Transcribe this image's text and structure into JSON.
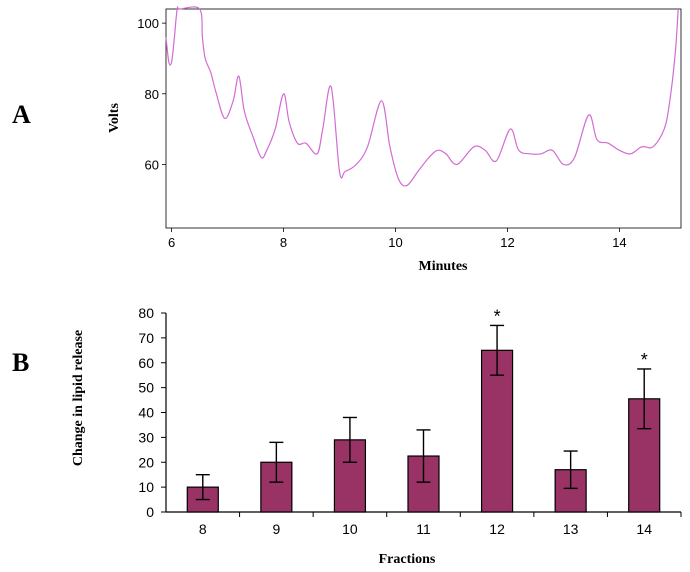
{
  "panels": {
    "a_label": "A",
    "b_label": "B"
  },
  "chart_data": [
    {
      "type": "line",
      "title": "",
      "xlabel": "Minutes",
      "ylabel": "Volts",
      "xlim": [
        5.9,
        15.1
      ],
      "ylim": [
        42,
        104
      ],
      "x_ticks": [
        6,
        8,
        10,
        12,
        14
      ],
      "y_ticks": [
        60,
        80,
        100
      ],
      "series_color": "#d36bd3",
      "grid": false,
      "series": [
        {
          "x": [
            5.9,
            5.95,
            6.0,
            6.05,
            6.1,
            6.15,
            6.5,
            6.55,
            6.6,
            6.7,
            6.8,
            6.95,
            7.1,
            7.2,
            7.3,
            7.45,
            7.6,
            7.7,
            7.85,
            8.0,
            8.1,
            8.25,
            8.4,
            8.6,
            8.7,
            8.85,
            9.0,
            9.1,
            9.3,
            9.5,
            9.75,
            9.9,
            10.05,
            10.2,
            10.4,
            10.6,
            10.75,
            10.9,
            11.1,
            11.4,
            11.6,
            11.8,
            12.05,
            12.2,
            12.4,
            12.6,
            12.8,
            13.0,
            13.2,
            13.45,
            13.6,
            13.8,
            14.0,
            14.2,
            14.4,
            14.6,
            14.8,
            14.9,
            15.0,
            15.05
          ],
          "y": [
            96,
            89,
            89,
            96,
            104,
            104,
            104,
            96,
            90,
            86,
            80,
            73,
            78,
            85,
            75,
            68,
            62,
            64,
            70,
            80,
            72,
            66,
            66,
            63,
            70,
            82,
            58,
            58,
            60,
            65,
            78,
            65,
            56,
            54,
            58,
            62,
            64,
            63,
            60,
            65,
            64,
            61,
            70,
            64,
            63,
            63,
            64,
            60,
            62,
            74,
            67,
            66,
            64,
            63,
            65,
            65,
            70,
            78,
            92,
            104
          ]
        }
      ]
    },
    {
      "type": "bar",
      "title": "",
      "xlabel": "Fractions",
      "ylabel": "Change in lipid release",
      "ylim": [
        0,
        80
      ],
      "y_ticks": [
        0,
        10,
        20,
        30,
        40,
        50,
        60,
        70,
        80
      ],
      "bar_color": "#993366",
      "categories": [
        "8",
        "9",
        "10",
        "11",
        "12",
        "13",
        "14"
      ],
      "values": [
        10,
        20,
        29,
        22.5,
        65,
        17,
        45.5
      ],
      "errors": [
        5,
        8,
        9,
        10.5,
        10,
        7.5,
        12
      ],
      "annotations": [
        "",
        "",
        "",
        "",
        "*",
        "",
        "*"
      ]
    }
  ]
}
